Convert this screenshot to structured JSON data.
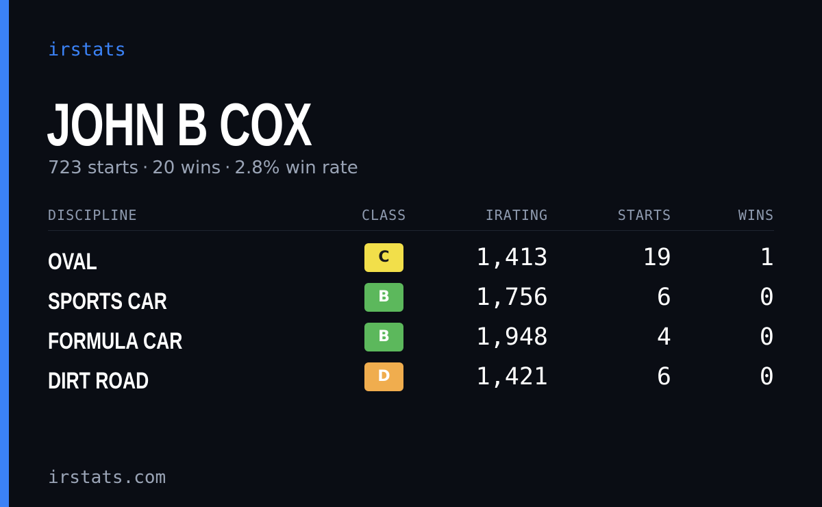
{
  "brand": "irstats",
  "driver": {
    "name": "JOHN B COX"
  },
  "summary": {
    "starts": "723 starts",
    "wins": "20 wins",
    "win_rate": "2.8% win rate",
    "separator": "·"
  },
  "table": {
    "headers": {
      "discipline": "DISCIPLINE",
      "class": "CLASS",
      "irating": "IRATING",
      "starts": "STARTS",
      "wins": "WINS"
    },
    "rows": [
      {
        "discipline": "OVAL",
        "class": "C",
        "class_color": "#f2df4a",
        "irating": "1,413",
        "starts": "19",
        "wins": "1"
      },
      {
        "discipline": "SPORTS CAR",
        "class": "B",
        "class_color": "#5cb85c",
        "irating": "1,756",
        "starts": "6",
        "wins": "0"
      },
      {
        "discipline": "FORMULA CAR",
        "class": "B",
        "class_color": "#5cb85c",
        "irating": "1,948",
        "starts": "4",
        "wins": "0"
      },
      {
        "discipline": "DIRT ROAD",
        "class": "D",
        "class_color": "#f0ad4e",
        "irating": "1,421",
        "starts": "6",
        "wins": "0"
      }
    ]
  },
  "footer": {
    "url": "irstats.com"
  },
  "colors": {
    "background": "#0a0d14",
    "accent": "#3b82f6",
    "muted_text": "#9aa4b6"
  }
}
